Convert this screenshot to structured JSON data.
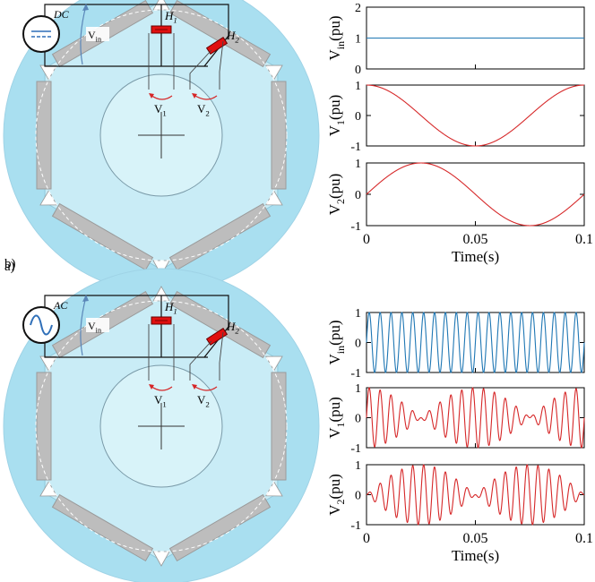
{
  "panels": [
    {
      "label": "a)",
      "source_type": "DC",
      "source_symbol": "dc-symbol",
      "labels": {
        "vin": "V",
        "vin_sub": "in",
        "v1": "V",
        "v1_sub": "1",
        "v2": "V",
        "v2_sub": "2",
        "h1": "H",
        "h1_sub": "1",
        "h2": "H",
        "h2_sub": "2"
      },
      "plots": [
        {
          "ylabel": "V",
          "ylabel_sub": "in",
          "ylabel_unit": "(pu)",
          "color": "#1f77b4",
          "signal": "dc",
          "ylim": [
            0,
            2
          ],
          "yticks": [
            "2",
            "1",
            "0"
          ]
        },
        {
          "ylabel": "V",
          "ylabel_sub": "1",
          "ylabel_unit": "(pu)",
          "color": "#d62728",
          "signal": "cos",
          "ylim": [
            -1,
            1
          ],
          "yticks": [
            "1",
            "0",
            "-1"
          ]
        },
        {
          "ylabel": "V",
          "ylabel_sub": "2",
          "ylabel_unit": "(pu)",
          "color": "#d62728",
          "signal": "sin",
          "ylim": [
            -1,
            1
          ],
          "yticks": [
            "1",
            "0",
            "-1"
          ]
        }
      ],
      "xticks": [
        "0",
        "0.05",
        "0.1"
      ],
      "xlabel": "Time(s)"
    },
    {
      "label": "b)",
      "source_type": "AC",
      "source_symbol": "ac-symbol",
      "labels": {
        "vin": "V",
        "vin_sub": "in",
        "v1": "V",
        "v1_sub": "1",
        "v2": "V",
        "v2_sub": "2",
        "h1": "H",
        "h1_sub": "1",
        "h2": "H",
        "h2_sub": "2"
      },
      "plots": [
        {
          "ylabel": "V",
          "ylabel_sub": "in",
          "ylabel_unit": "(pu)",
          "color": "#1f77b4",
          "signal": "ac",
          "ylim": [
            -1,
            1
          ],
          "yticks": [
            "1",
            "0",
            "-1"
          ]
        },
        {
          "ylabel": "V",
          "ylabel_sub": "1",
          "ylabel_unit": "(pu)",
          "color": "#d62728",
          "signal": "am-cos",
          "ylim": [
            -1,
            1
          ],
          "yticks": [
            "1",
            "0",
            "-1"
          ]
        },
        {
          "ylabel": "V",
          "ylabel_sub": "2",
          "ylabel_unit": "(pu)",
          "color": "#d62728",
          "signal": "am-sin",
          "ylim": [
            -1,
            1
          ],
          "yticks": [
            "1",
            "0",
            "-1"
          ]
        }
      ],
      "xticks": [
        "0",
        "0.05",
        "0.1"
      ],
      "xlabel": "Time(s)"
    }
  ],
  "chart_data": [
    {
      "type": "line",
      "x_range": [
        0,
        0.1
      ],
      "series": [
        {
          "values_desc": "Vin constant",
          "y": 1
        }
      ],
      "ylim": [
        0,
        2
      ],
      "xticks": [
        0,
        0.05,
        0.1
      ],
      "xlabel": "Time(s)",
      "ylabel": "Vin(pu)"
    },
    {
      "type": "line",
      "x_range": [
        0,
        0.1
      ],
      "series": [
        {
          "values_desc": "V1 = cos(2*pi*10*t)"
        }
      ],
      "ylim": [
        -1,
        1
      ],
      "ylabel": "V1(pu)"
    },
    {
      "type": "line",
      "x_range": [
        0,
        0.1
      ],
      "series": [
        {
          "values_desc": "V2 = sin(2*pi*10*t)"
        }
      ],
      "ylim": [
        -1,
        1
      ],
      "xticks": [
        0,
        0.05,
        0.1
      ],
      "xlabel": "Time(s)",
      "ylabel": "V2(pu)"
    },
    {
      "type": "line",
      "x_range": [
        0,
        0.1
      ],
      "series": [
        {
          "values_desc": "Vin = sin(2*pi*200*t)",
          "cycles": 20
        }
      ],
      "ylim": [
        -1,
        1
      ],
      "ylabel": "Vin(pu)"
    },
    {
      "type": "line",
      "x_range": [
        0,
        0.1
      ],
      "series": [
        {
          "values_desc": "V1 = cos(2*pi*10*t)*sin(2*pi*200*t)"
        }
      ],
      "ylim": [
        -1,
        1
      ],
      "ylabel": "V1(pu)"
    },
    {
      "type": "line",
      "x_range": [
        0,
        0.1
      ],
      "series": [
        {
          "values_desc": "V2 = sin(2*pi*10*t)*sin(2*pi*200*t)"
        }
      ],
      "ylim": [
        -1,
        1
      ],
      "xticks": [
        0,
        0.05,
        0.1
      ],
      "xlabel": "Time(s)",
      "ylabel": "V2(pu)"
    }
  ]
}
